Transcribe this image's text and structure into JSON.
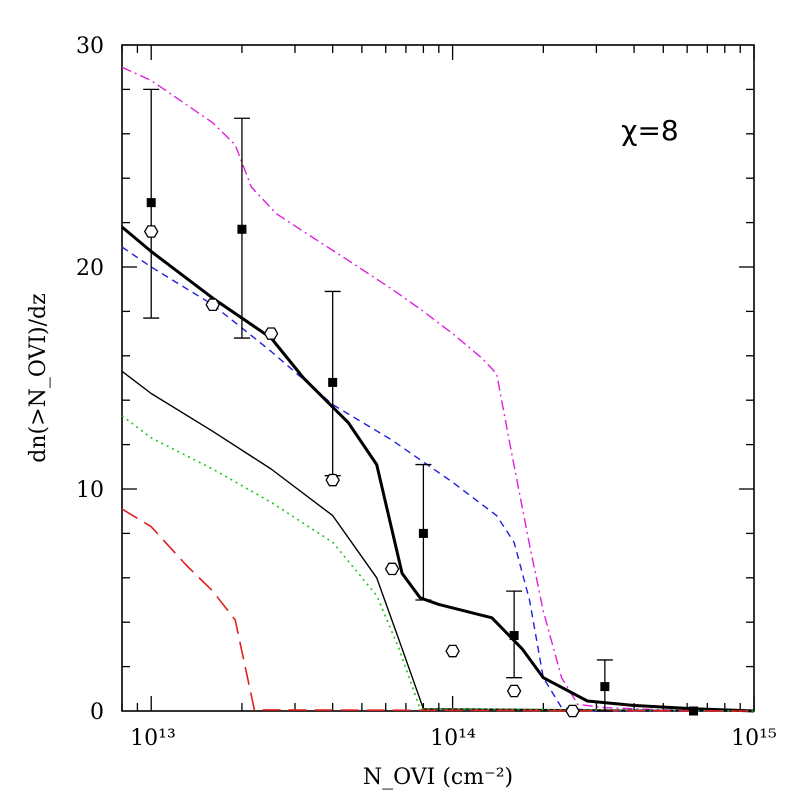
{
  "chart_data": {
    "type": "line",
    "title": "",
    "xlabel": "N_OVI (cm⁻²)",
    "ylabel": "dn(>N_OVI)/dz",
    "xscale": "log",
    "xlim": [
      8000000000000.0,
      1000000000000000.0
    ],
    "ylim": [
      0,
      30
    ],
    "x_tick_labels": [
      "10¹³",
      "10¹⁴",
      "10¹⁵"
    ],
    "x_tick_values": [
      10000000000000.0,
      100000000000000.0,
      1000000000000000.0
    ],
    "y_tick_labels": [
      "0",
      "10",
      "20",
      "30"
    ],
    "y_tick_values": [
      0,
      10,
      20,
      30
    ],
    "annotation": "χ=8",
    "series": [
      {
        "style": "dash-dot",
        "color": "#e020e0",
        "points": [
          [
            8000000000000.0,
            29.0
          ],
          [
            10000000000000.0,
            28.4
          ],
          [
            16000000000000.0,
            26.5
          ],
          [
            19000000000000.0,
            25.5
          ],
          [
            21500000000000.0,
            23.6
          ],
          [
            26000000000000.0,
            22.4
          ],
          [
            32000000000000.0,
            21.6
          ],
          [
            45000000000000.0,
            20.3
          ],
          [
            63000000000000.0,
            19.0
          ],
          [
            80000000000000.0,
            18.0
          ],
          [
            100000000000000.0,
            17.0
          ],
          [
            125000000000000.0,
            15.9
          ],
          [
            140000000000000.0,
            15.2
          ],
          [
            155000000000000.0,
            12.0
          ],
          [
            180000000000000.0,
            7.5
          ],
          [
            200000000000000.0,
            4.5
          ],
          [
            230000000000000.0,
            1.5
          ],
          [
            260000000000000.0,
            0.3
          ],
          [
            320000000000000.0,
            0.15
          ],
          [
            500000000000000.0,
            0.05
          ],
          [
            1000000000000000.0,
            0.0
          ]
        ]
      },
      {
        "style": "short-dash",
        "color": "#2020e0",
        "points": [
          [
            8000000000000.0,
            20.9
          ],
          [
            10000000000000.0,
            20.0
          ],
          [
            16000000000000.0,
            18.3
          ],
          [
            25000000000000.0,
            16.2
          ],
          [
            40000000000000.0,
            13.8
          ],
          [
            63000000000000.0,
            12.2
          ],
          [
            100000000000000.0,
            10.3
          ],
          [
            140000000000000.0,
            8.8
          ],
          [
            160000000000000.0,
            7.6
          ],
          [
            180000000000000.0,
            5.0
          ],
          [
            200000000000000.0,
            1.5
          ],
          [
            230000000000000.0,
            0.15
          ],
          [
            300000000000000.0,
            0.0
          ],
          [
            1000000000000000.0,
            0.0
          ]
        ]
      },
      {
        "style": "thick-solid",
        "color": "#000000",
        "points": [
          [
            8000000000000.0,
            21.8
          ],
          [
            10000000000000.0,
            20.7
          ],
          [
            16000000000000.0,
            18.6
          ],
          [
            25000000000000.0,
            16.8
          ],
          [
            32000000000000.0,
            15.0
          ],
          [
            45000000000000.0,
            13.0
          ],
          [
            56000000000000.0,
            11.1
          ],
          [
            68000000000000.0,
            6.2
          ],
          [
            78000000000000.0,
            5.1
          ],
          [
            90000000000000.0,
            4.8
          ],
          [
            135000000000000.0,
            4.2
          ],
          [
            170000000000000.0,
            2.8
          ],
          [
            200000000000000.0,
            1.5
          ],
          [
            280000000000000.0,
            0.45
          ],
          [
            400000000000000.0,
            0.25
          ],
          [
            630000000000000.0,
            0.1
          ],
          [
            1000000000000000.0,
            0.0
          ]
        ]
      },
      {
        "style": "thin-solid",
        "color": "#000000",
        "points": [
          [
            8000000000000.0,
            15.3
          ],
          [
            10000000000000.0,
            14.3
          ],
          [
            16000000000000.0,
            12.6
          ],
          [
            25000000000000.0,
            10.9
          ],
          [
            40000000000000.0,
            8.8
          ],
          [
            56000000000000.0,
            6.0
          ],
          [
            66000000000000.0,
            3.3
          ],
          [
            80000000000000.0,
            0.1
          ],
          [
            1000000000000000.0,
            0.0
          ]
        ]
      },
      {
        "style": "dotted",
        "color": "#20c020",
        "points": [
          [
            8000000000000.0,
            13.3
          ],
          [
            10000000000000.0,
            12.3
          ],
          [
            16000000000000.0,
            10.9
          ],
          [
            25000000000000.0,
            9.4
          ],
          [
            40000000000000.0,
            7.6
          ],
          [
            56000000000000.0,
            5.2
          ],
          [
            66000000000000.0,
            2.9
          ],
          [
            78000000000000.0,
            0.1
          ],
          [
            1000000000000000.0,
            0.0
          ]
        ]
      },
      {
        "style": "long-dash",
        "color": "#e02020",
        "points": [
          [
            8000000000000.0,
            9.1
          ],
          [
            10000000000000.0,
            8.3
          ],
          [
            13000000000000.0,
            6.6
          ],
          [
            16000000000000.0,
            5.4
          ],
          [
            19000000000000.0,
            4.1
          ],
          [
            22000000000000.0,
            0.05
          ],
          [
            1000000000000000.0,
            0.0
          ]
        ]
      }
    ],
    "square_points_with_errors": [
      {
        "x": 10000000000000.0,
        "y": 22.9,
        "ylow": 17.7,
        "yhigh": 28.0
      },
      {
        "x": 20000000000000.0,
        "y": 21.7,
        "ylow": 16.8,
        "yhigh": 26.7
      },
      {
        "x": 40000000000000.0,
        "y": 14.8,
        "ylow": 10.6,
        "yhigh": 18.9
      },
      {
        "x": 80000000000000.0,
        "y": 8.0,
        "ylow": 5.0,
        "yhigh": 11.1
      },
      {
        "x": 160000000000000.0,
        "y": 3.4,
        "ylow": 1.5,
        "yhigh": 5.4
      },
      {
        "x": 320000000000000.0,
        "y": 1.1,
        "ylow": 0.0,
        "yhigh": 2.3
      },
      {
        "x": 630000000000000.0,
        "y": 0.0,
        "ylow": 0.0,
        "yhigh": 0.0
      }
    ],
    "hexagon_points": [
      {
        "x": 10000000000000.0,
        "y": 21.6
      },
      {
        "x": 16000000000000.0,
        "y": 18.3
      },
      {
        "x": 25000000000000.0,
        "y": 17.0
      },
      {
        "x": 40000000000000.0,
        "y": 10.4
      },
      {
        "x": 63000000000000.0,
        "y": 6.4
      },
      {
        "x": 100000000000000.0,
        "y": 2.7
      },
      {
        "x": 160000000000000.0,
        "y": 0.9
      },
      {
        "x": 250000000000000.0,
        "y": 0.0
      }
    ]
  }
}
